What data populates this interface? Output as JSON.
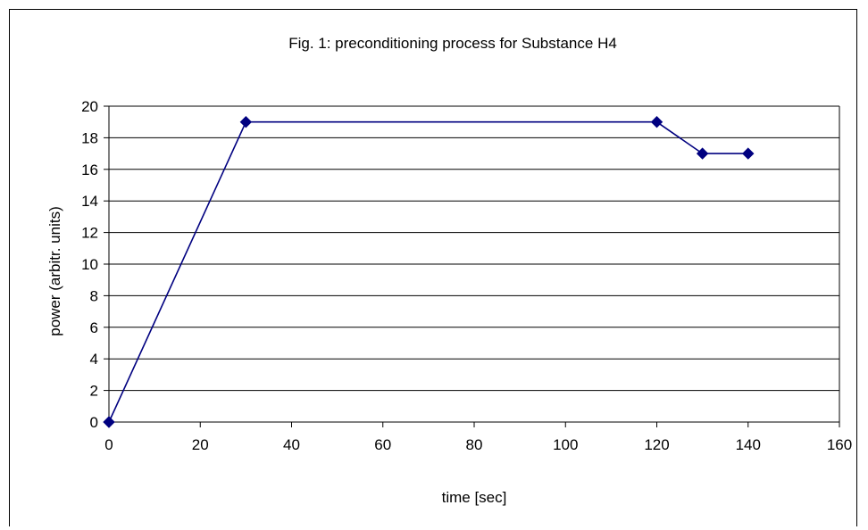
{
  "chart_data": {
    "type": "line",
    "title": "Fig. 1: preconditioning process for Substance H4",
    "xlabel": "time [sec]",
    "ylabel": "power (arbitr. units)",
    "xlim": [
      0,
      160
    ],
    "ylim": [
      0,
      20
    ],
    "x_ticks": [
      0,
      20,
      40,
      60,
      80,
      100,
      120,
      140,
      160
    ],
    "y_ticks": [
      0,
      2,
      4,
      6,
      8,
      10,
      12,
      14,
      16,
      18,
      20
    ],
    "grid": "horizontal",
    "legend": "none",
    "series": [
      {
        "x": [
          0,
          30,
          120,
          130,
          140
        ],
        "y": [
          0,
          19,
          19,
          17,
          17
        ],
        "color": "#000080",
        "marker": "diamond"
      }
    ]
  }
}
